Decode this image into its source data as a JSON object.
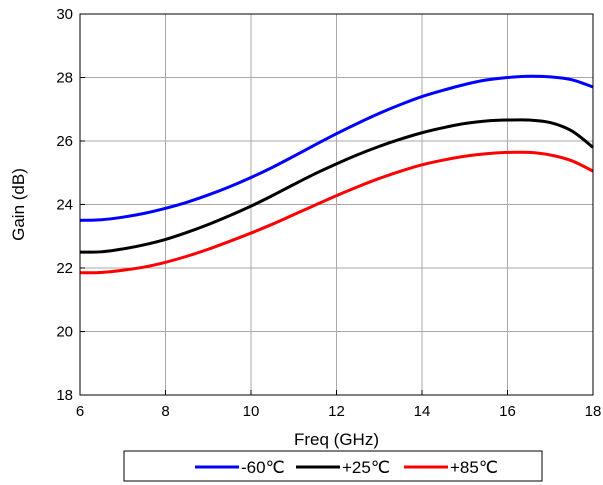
{
  "chart_data": {
    "type": "line",
    "title": "",
    "xlabel": "Freq (GHz)",
    "ylabel": "Gain (dB)",
    "xlim": [
      6,
      18
    ],
    "ylim": [
      18,
      30
    ],
    "xticks": [
      6,
      8,
      10,
      12,
      14,
      16,
      18
    ],
    "yticks": [
      18,
      20,
      22,
      24,
      26,
      28,
      30
    ],
    "xtick_labels": [
      "6",
      "8",
      "10",
      "12",
      "14",
      "16",
      "18"
    ],
    "ytick_labels": [
      "18",
      "20",
      "22",
      "24",
      "26",
      "28",
      "30"
    ],
    "grid": true,
    "legend_position": "bottom",
    "series": [
      {
        "name": "-60℃",
        "color": "#0000ff",
        "x": [
          6,
          6.5,
          7,
          7.5,
          8,
          8.5,
          9,
          9.5,
          10,
          10.5,
          11,
          11.5,
          12,
          12.5,
          13,
          13.5,
          14,
          14.5,
          15,
          15.5,
          16,
          16.5,
          17,
          17.5,
          18
        ],
        "y": [
          23.5,
          23.52,
          23.6,
          23.72,
          23.88,
          24.07,
          24.3,
          24.56,
          24.85,
          25.17,
          25.52,
          25.88,
          26.23,
          26.56,
          26.87,
          27.15,
          27.4,
          27.6,
          27.78,
          27.92,
          28.0,
          28.04,
          28.02,
          27.93,
          27.7
        ]
      },
      {
        "name": "+25℃",
        "color": "#000000",
        "x": [
          6,
          6.5,
          7,
          7.5,
          8,
          8.5,
          9,
          9.5,
          10,
          10.5,
          11,
          11.5,
          12,
          12.5,
          13,
          13.5,
          14,
          14.5,
          15,
          15.5,
          16,
          16.5,
          17,
          17.5,
          18
        ],
        "y": [
          22.5,
          22.51,
          22.6,
          22.73,
          22.9,
          23.12,
          23.37,
          23.65,
          23.95,
          24.28,
          24.63,
          24.97,
          25.28,
          25.57,
          25.83,
          26.06,
          26.26,
          26.42,
          26.55,
          26.63,
          26.66,
          26.66,
          26.58,
          26.32,
          25.8
        ]
      },
      {
        "name": "+85℃",
        "color": "#ff0000",
        "x": [
          6,
          6.5,
          7,
          7.5,
          8,
          8.5,
          9,
          9.5,
          10,
          10.5,
          11,
          11.5,
          12,
          12.5,
          13,
          13.5,
          14,
          14.5,
          15,
          15.5,
          16,
          16.5,
          17,
          17.5,
          18
        ],
        "y": [
          21.85,
          21.86,
          21.93,
          22.03,
          22.18,
          22.37,
          22.59,
          22.84,
          23.1,
          23.38,
          23.68,
          23.98,
          24.28,
          24.56,
          24.82,
          25.05,
          25.25,
          25.4,
          25.52,
          25.6,
          25.64,
          25.64,
          25.56,
          25.38,
          25.05
        ]
      }
    ]
  }
}
